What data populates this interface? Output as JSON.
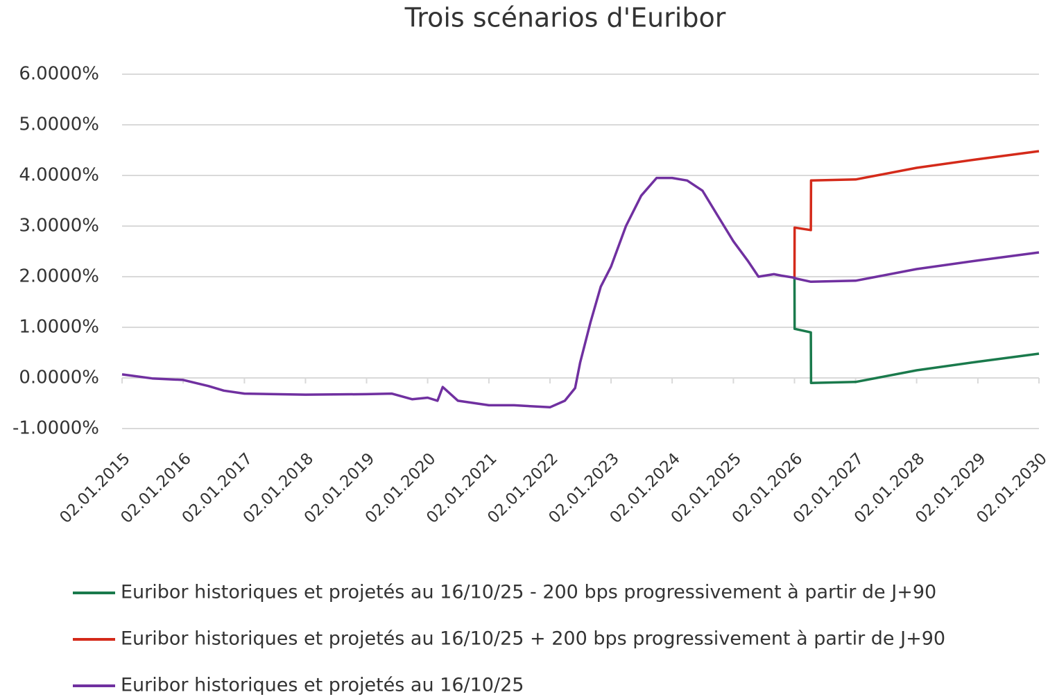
{
  "chart_data": {
    "type": "line",
    "title": "Trois scénarios d'Euribor",
    "x": [
      "2015-01-02",
      "2015-07-01",
      "2016-01-02",
      "2016-06-01",
      "2016-09-01",
      "2017-01-02",
      "2018-01-02",
      "2019-01-02",
      "2019-06-01",
      "2019-10-01",
      "2020-01-02",
      "2020-03-01",
      "2020-04-01",
      "2020-07-01",
      "2021-01-02",
      "2021-06-01",
      "2022-01-02",
      "2022-04-01",
      "2022-06-01",
      "2022-07-01",
      "2022-09-01",
      "2022-11-01",
      "2023-01-02",
      "2023-04-01",
      "2023-07-01",
      "2023-10-01",
      "2024-01-02",
      "2024-04-01",
      "2024-07-01",
      "2024-10-01",
      "2025-01-02",
      "2025-04-01",
      "2025-06-01",
      "2025-09-01",
      "2025-10-16",
      "2026-01-02",
      "2026-01-03",
      "2026-04-10",
      "2026-04-11",
      "2027-01-02",
      "2028-01-02",
      "2029-01-02",
      "2030-01-02"
    ],
    "series": [
      {
        "name": "Euribor historiques et projetés au 16/10/25 - 200 bps progressivement à partir de J+90",
        "color": "#1a7a4c",
        "values": [
          null,
          null,
          null,
          null,
          null,
          null,
          null,
          null,
          null,
          null,
          null,
          null,
          null,
          null,
          null,
          null,
          null,
          null,
          null,
          null,
          null,
          null,
          null,
          null,
          null,
          null,
          null,
          null,
          null,
          null,
          null,
          null,
          null,
          null,
          null,
          1.98,
          0.97,
          0.9,
          -0.1,
          -0.08,
          0.15,
          0.32,
          0.48
        ]
      },
      {
        "name": "Euribor historiques et projetés au 16/10/25 + 200 bps progressivement à partir de J+90",
        "color": "#d42a1a",
        "values": [
          null,
          null,
          null,
          null,
          null,
          null,
          null,
          null,
          null,
          null,
          null,
          null,
          null,
          null,
          null,
          null,
          null,
          null,
          null,
          null,
          null,
          null,
          null,
          null,
          null,
          null,
          null,
          null,
          null,
          null,
          null,
          null,
          null,
          null,
          null,
          1.98,
          2.97,
          2.92,
          3.9,
          3.92,
          4.15,
          4.32,
          4.48
        ]
      },
      {
        "name": "Euribor historiques et projetés au 16/10/25",
        "color": "#7030a0",
        "values": [
          0.07,
          -0.01,
          -0.04,
          -0.16,
          -0.25,
          -0.31,
          -0.33,
          -0.32,
          -0.31,
          -0.42,
          -0.39,
          -0.45,
          -0.18,
          -0.45,
          -0.54,
          -0.54,
          -0.58,
          -0.45,
          -0.2,
          0.3,
          1.1,
          1.8,
          2.2,
          3.0,
          3.6,
          3.95,
          3.95,
          3.9,
          3.7,
          3.2,
          2.7,
          2.3,
          2.0,
          2.05,
          2.02,
          1.98,
          1.97,
          1.9,
          1.9,
          1.92,
          2.15,
          2.32,
          2.48
        ]
      }
    ],
    "ylim": [
      -1,
      6
    ],
    "yticks": [
      {
        "value": -1,
        "label": "-1.0000%"
      },
      {
        "value": 0,
        "label": "0.0000%"
      },
      {
        "value": 1,
        "label": "1.0000%"
      },
      {
        "value": 2,
        "label": "2.0000%"
      },
      {
        "value": 3,
        "label": "3.0000%"
      },
      {
        "value": 4,
        "label": "4.0000%"
      },
      {
        "value": 5,
        "label": "5.0000%"
      },
      {
        "value": 6,
        "label": "6.0000%"
      }
    ],
    "xlim": [
      "2015-01-02",
      "2030-01-02"
    ],
    "xticks": [
      {
        "value": "2015-01-02",
        "label": "02.01.2015"
      },
      {
        "value": "2016-01-02",
        "label": "02.01.2016"
      },
      {
        "value": "2017-01-02",
        "label": "02.01.2017"
      },
      {
        "value": "2018-01-02",
        "label": "02.01.2018"
      },
      {
        "value": "2019-01-02",
        "label": "02.01.2019"
      },
      {
        "value": "2020-01-02",
        "label": "02.01.2020"
      },
      {
        "value": "2021-01-02",
        "label": "02.01.2021"
      },
      {
        "value": "2022-01-02",
        "label": "02.01.2022"
      },
      {
        "value": "2023-01-02",
        "label": "02.01.2023"
      },
      {
        "value": "2024-01-02",
        "label": "02.01.2024"
      },
      {
        "value": "2025-01-02",
        "label": "02.01.2025"
      },
      {
        "value": "2026-01-02",
        "label": "02.01.2026"
      },
      {
        "value": "2027-01-02",
        "label": "02.01.2027"
      },
      {
        "value": "2028-01-02",
        "label": "02.01.2028"
      },
      {
        "value": "2029-01-02",
        "label": "02.01.2029"
      },
      {
        "value": "2030-01-02",
        "label": "02.01.2030"
      }
    ],
    "grid": true,
    "legend": "bottom"
  }
}
